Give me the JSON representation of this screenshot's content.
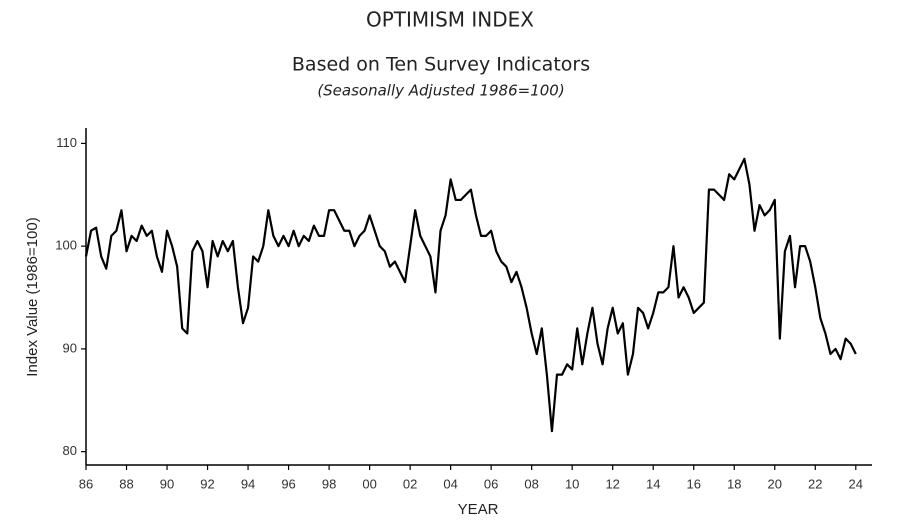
{
  "chart_data": {
    "type": "line",
    "title": "OPTIMISM INDEX",
    "subtitle": "Based on Ten Survey Indicators",
    "note": "(Seasonally Adjusted 1986=100)",
    "x_label": "YEAR",
    "y_label": "Index Value (1986=100)",
    "xlim": [
      1986,
      2024.8
    ],
    "ylim": [
      78.7,
      111.5
    ],
    "xticks": [
      {
        "value": 1986,
        "label": "86"
      },
      {
        "value": 1988,
        "label": "88"
      },
      {
        "value": 1990,
        "label": "90"
      },
      {
        "value": 1992,
        "label": "92"
      },
      {
        "value": 1994,
        "label": "94"
      },
      {
        "value": 1996,
        "label": "96"
      },
      {
        "value": 1998,
        "label": "98"
      },
      {
        "value": 2000,
        "label": "00"
      },
      {
        "value": 2002,
        "label": "02"
      },
      {
        "value": 2004,
        "label": "04"
      },
      {
        "value": 2006,
        "label": "06"
      },
      {
        "value": 2008,
        "label": "08"
      },
      {
        "value": 2010,
        "label": "10"
      },
      {
        "value": 2012,
        "label": "12"
      },
      {
        "value": 2014,
        "label": "14"
      },
      {
        "value": 2016,
        "label": "16"
      },
      {
        "value": 2018,
        "label": "18"
      },
      {
        "value": 2020,
        "label": "20"
      },
      {
        "value": 2022,
        "label": "22"
      },
      {
        "value": 2024,
        "label": "24"
      }
    ],
    "yticks": [
      80,
      90,
      100,
      110
    ],
    "grid": false,
    "color": "#000000",
    "x": [
      1986,
      1986.25,
      1986.5,
      1986.75,
      1987,
      1987.25,
      1987.5,
      1987.75,
      1988,
      1988.25,
      1988.5,
      1988.75,
      1989,
      1989.25,
      1989.5,
      1989.75,
      1990,
      1990.25,
      1990.5,
      1990.75,
      1991,
      1991.25,
      1991.5,
      1991.75,
      1992,
      1992.25,
      1992.5,
      1992.75,
      1993,
      1993.25,
      1993.5,
      1993.75,
      1994,
      1994.25,
      1994.5,
      1994.75,
      1995,
      1995.25,
      1995.5,
      1995.75,
      1996,
      1996.25,
      1996.5,
      1996.75,
      1997,
      1997.25,
      1997.5,
      1997.75,
      1998,
      1998.25,
      1998.5,
      1998.75,
      1999,
      1999.25,
      1999.5,
      1999.75,
      2000,
      2000.25,
      2000.5,
      2000.75,
      2001,
      2001.25,
      2001.5,
      2001.75,
      2002,
      2002.25,
      2002.5,
      2002.75,
      2003,
      2003.25,
      2003.5,
      2003.75,
      2004,
      2004.25,
      2004.5,
      2004.75,
      2005,
      2005.25,
      2005.5,
      2005.75,
      2006,
      2006.25,
      2006.5,
      2006.75,
      2007,
      2007.25,
      2007.5,
      2007.75,
      2008,
      2008.25,
      2008.5,
      2008.75,
      2009,
      2009.25,
      2009.5,
      2009.75,
      2010,
      2010.25,
      2010.5,
      2010.75,
      2011,
      2011.25,
      2011.5,
      2011.75,
      2012,
      2012.25,
      2012.5,
      2012.75,
      2013,
      2013.25,
      2013.5,
      2013.75,
      2014,
      2014.25,
      2014.5,
      2014.75,
      2015,
      2015.25,
      2015.5,
      2015.75,
      2016,
      2016.25,
      2016.5,
      2016.75,
      2017,
      2017.25,
      2017.5,
      2017.75,
      2018,
      2018.25,
      2018.5,
      2018.75,
      2019,
      2019.25,
      2019.5,
      2019.75,
      2020,
      2020.25,
      2020.5,
      2020.75,
      2021,
      2021.25,
      2021.5,
      2021.75,
      2022,
      2022.25,
      2022.5,
      2022.75,
      2023,
      2023.25,
      2023.5,
      2023.75,
      2024
    ],
    "values": [
      99,
      101.5,
      101.8,
      99,
      97.8,
      101,
      101.5,
      103.5,
      99.5,
      101,
      100.5,
      102,
      101,
      101.5,
      99,
      97.5,
      101.5,
      100,
      98,
      92,
      91.5,
      99.5,
      100.5,
      99.5,
      96,
      100.5,
      99,
      100.5,
      99.5,
      100.5,
      96,
      92.5,
      94,
      99,
      98.5,
      100,
      103.5,
      101,
      100,
      101,
      100,
      101.5,
      100,
      101,
      100.5,
      102,
      101,
      101,
      103.5,
      103.5,
      102.5,
      101.5,
      101.5,
      100,
      101,
      101.5,
      103,
      101.5,
      100,
      99.5,
      98,
      98.5,
      97.5,
      96.5,
      100,
      103.5,
      101,
      100,
      99,
      95.5,
      101.5,
      103,
      106.5,
      104.5,
      104.5,
      105,
      105.5,
      103,
      101,
      101,
      101.5,
      99.5,
      98.5,
      98,
      96.5,
      97.5,
      96,
      94,
      91.5,
      89.5,
      92,
      87.5,
      82,
      87.5,
      87.5,
      88.5,
      88,
      92,
      88.5,
      91.5,
      94,
      90.5,
      88.5,
      92,
      94,
      91.5,
      92.5,
      87.5,
      89.5,
      94,
      93.5,
      92,
      93.5,
      95.5,
      95.5,
      96,
      100,
      95,
      96,
      95,
      93.5,
      94,
      94.5,
      105.5,
      105.5,
      105,
      104.5,
      107,
      106.5,
      107.5,
      108.5,
      106,
      101.5,
      104,
      103,
      103.5,
      104.5,
      91,
      99.5,
      101,
      96,
      100,
      100,
      98.5,
      96,
      93,
      91.5,
      89.5,
      90,
      89,
      91,
      90.5,
      89.5
    ]
  }
}
